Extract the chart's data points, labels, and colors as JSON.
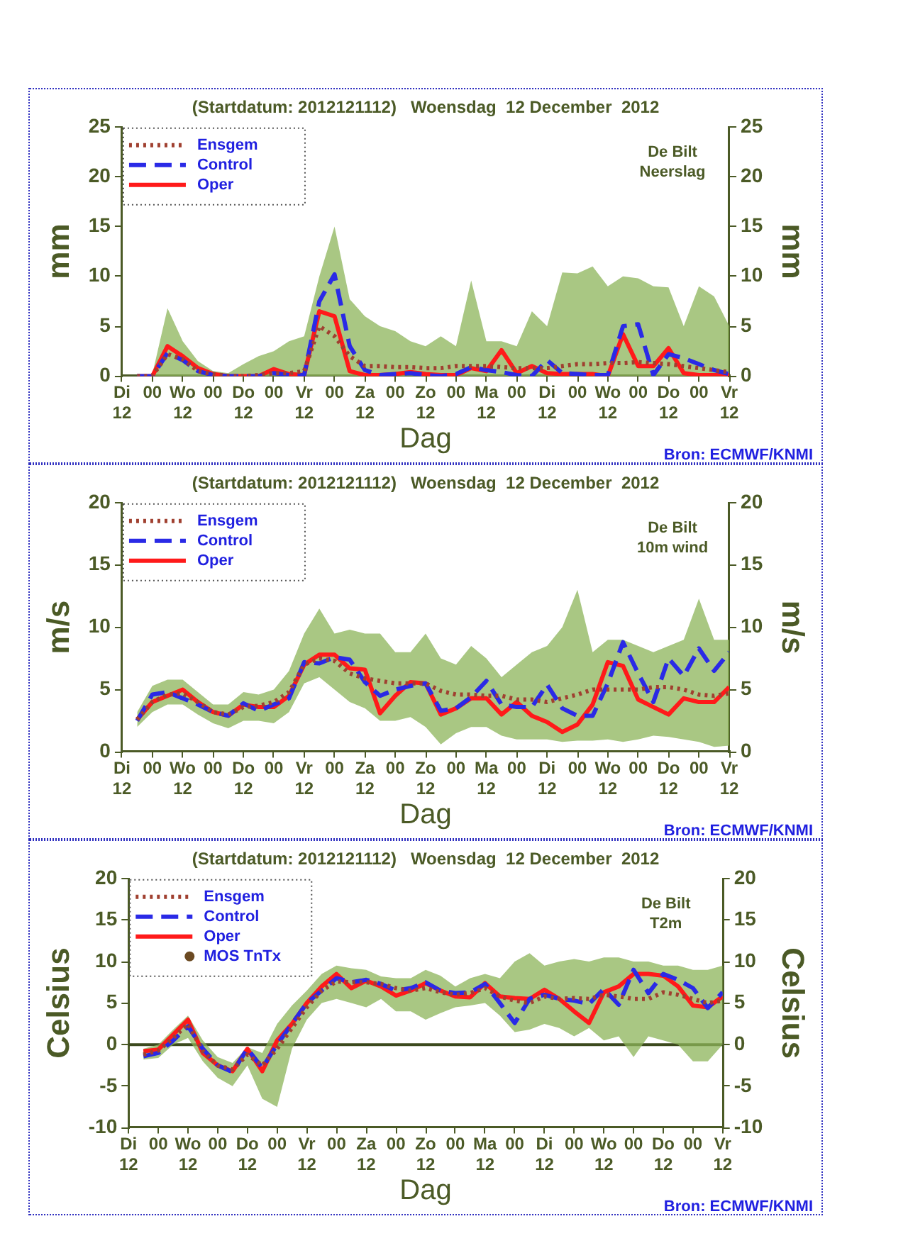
{
  "chart_data": [
    {
      "type": "line",
      "title": "(Startdatum: 2012121112)   Woensdag  12 December  2012",
      "xlabel": "Dag",
      "ylabel": "mm",
      "y2label": "mm",
      "annotations": [
        "De Bilt\nNeerslag",
        "Bron: ECMWF/KNMI"
      ],
      "x": [
        "2012-12-11T18:00",
        "2012-12-12T00:00",
        "2012-12-12T06:00",
        "2012-12-12T12:00",
        "2012-12-12T18:00",
        "2012-12-13T00:00",
        "2012-12-13T06:00",
        "2012-12-13T12:00",
        "2012-12-13T18:00",
        "2012-12-14T00:00",
        "2012-12-14T06:00",
        "2012-12-14T12:00",
        "2012-12-14T18:00",
        "2012-12-15T00:00",
        "2012-12-15T06:00",
        "2012-12-15T12:00",
        "2012-12-15T18:00",
        "2012-12-16T00:00",
        "2012-12-16T06:00",
        "2012-12-16T12:00",
        "2012-12-16T18:00",
        "2012-12-17T00:00",
        "2012-12-17T06:00",
        "2012-12-17T12:00",
        "2012-12-17T18:00",
        "2012-12-18T00:00",
        "2012-12-18T06:00",
        "2012-12-18T12:00",
        "2012-12-18T18:00",
        "2012-12-19T00:00",
        "2012-12-19T06:00",
        "2012-12-19T12:00",
        "2012-12-19T18:00",
        "2012-12-20T00:00",
        "2012-12-20T06:00",
        "2012-12-20T12:00",
        "2012-12-20T18:00",
        "2012-12-21T00:00",
        "2012-12-21T06:00",
        "2012-12-21T12:00"
      ],
      "xlim": [
        "2012-12-11T12:00",
        "2012-12-21T12:00"
      ],
      "xticks": [
        {
          "value": "2012-12-11T12:00",
          "label": "Di\n12"
        },
        {
          "value": "2012-12-12T00:00",
          "label": "00"
        },
        {
          "value": "2012-12-12T12:00",
          "label": "Wo\n12"
        },
        {
          "value": "2012-12-13T00:00",
          "label": "00"
        },
        {
          "value": "2012-12-13T12:00",
          "label": "Do\n12"
        },
        {
          "value": "2012-12-14T00:00",
          "label": "00"
        },
        {
          "value": "2012-12-14T12:00",
          "label": "Vr\n12"
        },
        {
          "value": "2012-12-15T00:00",
          "label": "00"
        },
        {
          "value": "2012-12-15T12:00",
          "label": "Za\n12"
        },
        {
          "value": "2012-12-16T00:00",
          "label": "00"
        },
        {
          "value": "2012-12-16T12:00",
          "label": "Zo\n12"
        },
        {
          "value": "2012-12-17T00:00",
          "label": "00"
        },
        {
          "value": "2012-12-17T12:00",
          "label": "Ma\n12"
        },
        {
          "value": "2012-12-18T00:00",
          "label": "00"
        },
        {
          "value": "2012-12-18T12:00",
          "label": "Di\n12"
        },
        {
          "value": "2012-12-19T00:00",
          "label": "00"
        },
        {
          "value": "2012-12-19T12:00",
          "label": "Wo\n12"
        },
        {
          "value": "2012-12-20T00:00",
          "label": "00"
        },
        {
          "value": "2012-12-20T12:00",
          "label": "Do\n12"
        },
        {
          "value": "2012-12-21T00:00",
          "label": "00"
        },
        {
          "value": "2012-12-21T12:00",
          "label": "Vr\n12"
        }
      ],
      "ylim": [
        0,
        25
      ],
      "yticks": [
        0,
        5,
        10,
        15,
        20,
        25
      ],
      "y2lim": [
        0,
        25
      ],
      "y2ticks": [
        0,
        5,
        10,
        15,
        20,
        25
      ],
      "grid": false,
      "legend": "top left",
      "marker": "none",
      "series": [
        {
          "name": "Ensgem",
          "color": "#a04030",
          "line_style": "dotted",
          "values": [
            0,
            0,
            2.2,
            1.7,
            0.5,
            0.2,
            0,
            0,
            0.1,
            0.3,
            0.3,
            0.5,
            5.0,
            4.0,
            2.0,
            1.0,
            1.0,
            0.9,
            0.9,
            0.8,
            0.8,
            1.0,
            1.0,
            1.0,
            0.9,
            0.8,
            0.8,
            0.8,
            1.0,
            1.2,
            1.2,
            1.3,
            1.3,
            1.4,
            1.3,
            1.2,
            1.0,
            0.8,
            0.6,
            0.4
          ],
          "lower": [
            0,
            0,
            0,
            0,
            0,
            0,
            0,
            0,
            0,
            0,
            0,
            0,
            0,
            0,
            0,
            0,
            0,
            0,
            0,
            0,
            0,
            0,
            0,
            0,
            0,
            0,
            0,
            0,
            0,
            0,
            0,
            0,
            0,
            0,
            0,
            0,
            0,
            0,
            0,
            0
          ],
          "upper": [
            0,
            0.2,
            6.8,
            3.5,
            1.5,
            0.5,
            0.3,
            1.2,
            2.0,
            2.5,
            3.5,
            4.0,
            10.0,
            15.0,
            7.7,
            6.0,
            5.0,
            4.5,
            3.5,
            3.0,
            4.0,
            3.0,
            9.6,
            3.5,
            3.5,
            3.0,
            6.5,
            5.0,
            10.4,
            10.3,
            11.0,
            9.0,
            10.0,
            9.8,
            9.0,
            8.9,
            5.0,
            9.0,
            8.0,
            5.0
          ]
        },
        {
          "name": "Control",
          "color": "#2a2ae6",
          "line_style": "dashed",
          "values": [
            0,
            0,
            2.3,
            1.6,
            0.5,
            0.1,
            0,
            0,
            0,
            0.3,
            0.1,
            0.1,
            7.5,
            10.2,
            3.0,
            0.6,
            0.1,
            0.2,
            0.3,
            0.1,
            0,
            0.2,
            0.9,
            0.6,
            0.4,
            0.1,
            0,
            1.6,
            0.3,
            0.2,
            0.1,
            0.1,
            5.0,
            5.2,
            0.1,
            2.2,
            1.8,
            1.2,
            0.6,
            0.2
          ]
        },
        {
          "name": "Oper",
          "color": "#ff1a1a",
          "line_style": "solid",
          "values": [
            0,
            0,
            3.0,
            2.0,
            0.8,
            0.2,
            0,
            0,
            0,
            0.7,
            0.2,
            0.1,
            6.5,
            6.0,
            0.5,
            0.1,
            0.1,
            0.2,
            0.4,
            0.2,
            0.1,
            0.1,
            0.8,
            0.5,
            2.6,
            0.3,
            1.0,
            0.3,
            0.2,
            0.2,
            0.2,
            0,
            4.2,
            1.0,
            1.0,
            2.8,
            0.3,
            0.1,
            0.1,
            0.1
          ]
        }
      ]
    },
    {
      "type": "line",
      "title": "(Startdatum: 2012121112)   Woensdag  12 December  2012",
      "xlabel": "Dag",
      "ylabel": "m/s",
      "y2label": "m/s",
      "annotations": [
        "De Bilt\n10m wind",
        "Bron: ECMWF/KNMI"
      ],
      "x": [
        "2012-12-11T18:00",
        "2012-12-12T00:00",
        "2012-12-12T06:00",
        "2012-12-12T12:00",
        "2012-12-12T18:00",
        "2012-12-13T00:00",
        "2012-12-13T06:00",
        "2012-12-13T12:00",
        "2012-12-13T18:00",
        "2012-12-14T00:00",
        "2012-12-14T06:00",
        "2012-12-14T12:00",
        "2012-12-14T18:00",
        "2012-12-15T00:00",
        "2012-12-15T06:00",
        "2012-12-15T12:00",
        "2012-12-15T18:00",
        "2012-12-16T00:00",
        "2012-12-16T06:00",
        "2012-12-16T12:00",
        "2012-12-16T18:00",
        "2012-12-17T00:00",
        "2012-12-17T06:00",
        "2012-12-17T12:00",
        "2012-12-17T18:00",
        "2012-12-18T00:00",
        "2012-12-18T06:00",
        "2012-12-18T12:00",
        "2012-12-18T18:00",
        "2012-12-19T00:00",
        "2012-12-19T06:00",
        "2012-12-19T12:00",
        "2012-12-19T18:00",
        "2012-12-20T00:00",
        "2012-12-20T06:00",
        "2012-12-20T12:00",
        "2012-12-20T18:00",
        "2012-12-21T00:00",
        "2012-12-21T06:00",
        "2012-12-21T12:00"
      ],
      "xlim": [
        "2012-12-11T12:00",
        "2012-12-21T12:00"
      ],
      "xticks": [
        {
          "value": "2012-12-11T12:00",
          "label": "Di\n12"
        },
        {
          "value": "2012-12-12T00:00",
          "label": "00"
        },
        {
          "value": "2012-12-12T12:00",
          "label": "Wo\n12"
        },
        {
          "value": "2012-12-13T00:00",
          "label": "00"
        },
        {
          "value": "2012-12-13T12:00",
          "label": "Do\n12"
        },
        {
          "value": "2012-12-14T00:00",
          "label": "00"
        },
        {
          "value": "2012-12-14T12:00",
          "label": "Vr\n12"
        },
        {
          "value": "2012-12-15T00:00",
          "label": "00"
        },
        {
          "value": "2012-12-15T12:00",
          "label": "Za\n12"
        },
        {
          "value": "2012-12-16T00:00",
          "label": "00"
        },
        {
          "value": "2012-12-16T12:00",
          "label": "Zo\n12"
        },
        {
          "value": "2012-12-17T00:00",
          "label": "00"
        },
        {
          "value": "2012-12-17T12:00",
          "label": "Ma\n12"
        },
        {
          "value": "2012-12-18T00:00",
          "label": "00"
        },
        {
          "value": "2012-12-18T12:00",
          "label": "Di\n12"
        },
        {
          "value": "2012-12-19T00:00",
          "label": "00"
        },
        {
          "value": "2012-12-19T12:00",
          "label": "Wo\n12"
        },
        {
          "value": "2012-12-20T00:00",
          "label": "00"
        },
        {
          "value": "2012-12-20T12:00",
          "label": "Do\n12"
        },
        {
          "value": "2012-12-21T00:00",
          "label": "00"
        },
        {
          "value": "2012-12-21T12:00",
          "label": "Vr\n12"
        }
      ],
      "ylim": [
        0,
        20
      ],
      "yticks": [
        0,
        5,
        10,
        15,
        20
      ],
      "y2lim": [
        0,
        20
      ],
      "y2ticks": [
        0,
        5,
        10,
        15,
        20
      ],
      "grid": false,
      "legend": "top left",
      "marker": "none",
      "series": [
        {
          "name": "Ensgem",
          "color": "#a04030",
          "line_style": "dotted",
          "values": [
            2.6,
            4.0,
            4.6,
            4.7,
            4.0,
            3.2,
            3.0,
            3.6,
            3.7,
            4.0,
            4.8,
            7.0,
            7.5,
            7.3,
            6.3,
            5.9,
            5.7,
            5.5,
            5.5,
            5.5,
            4.9,
            4.6,
            4.6,
            4.5,
            4.5,
            4.2,
            4.2,
            4.0,
            4.3,
            4.6,
            5.0,
            5.0,
            5.0,
            5.0,
            5.2,
            5.2,
            5.0,
            4.6,
            4.5,
            4.7
          ],
          "lower": [
            2.0,
            3.2,
            3.8,
            3.8,
            3.0,
            2.3,
            1.9,
            2.5,
            2.5,
            2.3,
            3.2,
            5.5,
            6.0,
            5.0,
            4.0,
            3.5,
            2.5,
            2.5,
            2.8,
            2.0,
            0.6,
            1.5,
            2.0,
            2.0,
            1.3,
            1.0,
            1.0,
            1.0,
            0.8,
            0.9,
            0.9,
            1.0,
            0.8,
            1.0,
            1.3,
            1.2,
            1.0,
            0.8,
            0.4,
            0.5
          ],
          "upper": [
            3.2,
            5.3,
            5.8,
            5.8,
            4.8,
            3.8,
            3.8,
            4.8,
            4.6,
            5.0,
            6.5,
            9.5,
            11.5,
            9.5,
            9.8,
            9.5,
            9.5,
            8.0,
            8.0,
            9.5,
            7.5,
            7.0,
            8.5,
            7.5,
            6.0,
            7.0,
            8.0,
            8.5,
            10.0,
            13.0,
            8.0,
            9.0,
            9.0,
            8.5,
            8.0,
            8.5,
            9.0,
            12.3,
            9.0,
            9.0
          ]
        },
        {
          "name": "Control",
          "color": "#2a2ae6",
          "line_style": "dashed",
          "values": [
            2.5,
            4.6,
            4.8,
            4.3,
            3.8,
            3.2,
            2.9,
            3.9,
            3.3,
            3.8,
            4.3,
            7.2,
            7.1,
            7.6,
            7.4,
            5.6,
            4.5,
            5.0,
            5.3,
            5.5,
            3.3,
            3.5,
            4.4,
            5.7,
            3.8,
            3.6,
            3.6,
            5.4,
            3.5,
            2.9,
            2.9,
            5.5,
            8.8,
            6.3,
            4.0,
            7.5,
            6.1,
            8.3,
            6.5,
            8.0
          ]
        },
        {
          "name": "Oper",
          "color": "#ff1a1a",
          "line_style": "solid",
          "values": [
            2.6,
            4.0,
            4.5,
            5.0,
            4.0,
            3.2,
            2.9,
            3.8,
            3.6,
            3.6,
            4.5,
            7.0,
            7.8,
            7.8,
            6.7,
            6.6,
            3.1,
            4.5,
            5.6,
            5.5,
            3.0,
            3.5,
            4.3,
            4.3,
            3.0,
            4.0,
            2.9,
            2.4,
            1.6,
            2.2,
            3.8,
            7.2,
            6.9,
            4.2,
            3.6,
            3.0,
            4.3,
            4.0,
            4.0,
            5.2
          ]
        }
      ]
    },
    {
      "type": "line",
      "title": "(Startdatum: 2012121112)   Woensdag  12 December  2012",
      "xlabel": "Dag",
      "ylabel": "Celsius",
      "y2label": "Celsius",
      "annotations": [
        "De Bilt\nT2m",
        "Bron: ECMWF/KNMI"
      ],
      "x": [
        "2012-12-11T18:00",
        "2012-12-12T00:00",
        "2012-12-12T06:00",
        "2012-12-12T12:00",
        "2012-12-12T18:00",
        "2012-12-13T00:00",
        "2012-12-13T06:00",
        "2012-12-13T12:00",
        "2012-12-13T18:00",
        "2012-12-14T00:00",
        "2012-12-14T06:00",
        "2012-12-14T12:00",
        "2012-12-14T18:00",
        "2012-12-15T00:00",
        "2012-12-15T06:00",
        "2012-12-15T12:00",
        "2012-12-15T18:00",
        "2012-12-16T00:00",
        "2012-12-16T06:00",
        "2012-12-16T12:00",
        "2012-12-16T18:00",
        "2012-12-17T00:00",
        "2012-12-17T06:00",
        "2012-12-17T12:00",
        "2012-12-17T18:00",
        "2012-12-18T00:00",
        "2012-12-18T06:00",
        "2012-12-18T12:00",
        "2012-12-18T18:00",
        "2012-12-19T00:00",
        "2012-12-19T06:00",
        "2012-12-19T12:00",
        "2012-12-19T18:00",
        "2012-12-20T00:00",
        "2012-12-20T06:00",
        "2012-12-20T12:00",
        "2012-12-20T18:00",
        "2012-12-21T00:00",
        "2012-12-21T06:00",
        "2012-12-21T12:00"
      ],
      "xlim": [
        "2012-12-11T12:00",
        "2012-12-21T12:00"
      ],
      "xticks": [
        {
          "value": "2012-12-11T12:00",
          "label": "Di\n12"
        },
        {
          "value": "2012-12-12T00:00",
          "label": "00"
        },
        {
          "value": "2012-12-12T12:00",
          "label": "Wo\n12"
        },
        {
          "value": "2012-12-13T00:00",
          "label": "00"
        },
        {
          "value": "2012-12-13T12:00",
          "label": "Do\n12"
        },
        {
          "value": "2012-12-14T00:00",
          "label": "00"
        },
        {
          "value": "2012-12-14T12:00",
          "label": "Vr\n12"
        },
        {
          "value": "2012-12-15T00:00",
          "label": "00"
        },
        {
          "value": "2012-12-15T12:00",
          "label": "Za\n12"
        },
        {
          "value": "2012-12-16T00:00",
          "label": "00"
        },
        {
          "value": "2012-12-16T12:00",
          "label": "Zo\n12"
        },
        {
          "value": "2012-12-17T00:00",
          "label": "00"
        },
        {
          "value": "2012-12-17T12:00",
          "label": "Ma\n12"
        },
        {
          "value": "2012-12-18T00:00",
          "label": "00"
        },
        {
          "value": "2012-12-18T12:00",
          "label": "Di\n12"
        },
        {
          "value": "2012-12-19T00:00",
          "label": "00"
        },
        {
          "value": "2012-12-19T12:00",
          "label": "Wo\n12"
        },
        {
          "value": "2012-12-20T00:00",
          "label": "00"
        },
        {
          "value": "2012-12-20T12:00",
          "label": "Do\n12"
        },
        {
          "value": "2012-12-21T00:00",
          "label": "00"
        },
        {
          "value": "2012-12-21T12:00",
          "label": "Vr\n12"
        }
      ],
      "ylim": [
        -10,
        20
      ],
      "yticks": [
        -10,
        -5,
        0,
        5,
        10,
        15,
        20
      ],
      "y2lim": [
        -10,
        20
      ],
      "y2ticks": [
        -10,
        -5,
        0,
        5,
        10,
        15,
        20
      ],
      "grid": false,
      "legend": "top left",
      "marker": "none",
      "ref_lines": [
        {
          "axis": "y",
          "value": 0,
          "color": "#3c4a1e"
        }
      ],
      "series": [
        {
          "name": "Ensgem",
          "color": "#a04030",
          "line_style": "dotted",
          "values": [
            -1.2,
            -0.7,
            0.8,
            2.5,
            -0.8,
            -2.5,
            -3.0,
            -1.2,
            -2.5,
            -0.5,
            2.0,
            4.5,
            6.5,
            7.6,
            7.5,
            7.5,
            7.3,
            6.8,
            6.5,
            6.8,
            6.3,
            6.0,
            6.2,
            6.8,
            5.8,
            5.3,
            5.0,
            5.8,
            5.5,
            5.6,
            5.5,
            6.0,
            5.8,
            5.5,
            5.5,
            6.3,
            6.0,
            5.5,
            5.0,
            5.3
          ],
          "lower": [
            -1.8,
            -1.6,
            0,
            0.8,
            -2.0,
            -4.0,
            -5.0,
            -2.5,
            -6.5,
            -7.5,
            -0.5,
            3.0,
            5.0,
            5.5,
            5.0,
            4.5,
            5.5,
            4.0,
            4.0,
            3.0,
            3.8,
            4.5,
            4.7,
            5.0,
            3.5,
            1.5,
            1.8,
            2.5,
            2.0,
            1.0,
            2.0,
            0.5,
            1.0,
            -1.5,
            1.0,
            0.5,
            0,
            -2.0,
            -2.0,
            0
          ],
          "upper": [
            -0.5,
            0,
            1.8,
            3.5,
            0.5,
            -1.5,
            -2.2,
            -0.3,
            -1.0,
            2.5,
            4.7,
            6.5,
            8.5,
            9.5,
            9.2,
            9.0,
            8.2,
            8.0,
            8.0,
            9.0,
            8.3,
            7.0,
            8.0,
            8.5,
            8.0,
            10.0,
            11.0,
            9.5,
            10.0,
            10.3,
            10.0,
            10.5,
            10.5,
            10.0,
            10.0,
            9.5,
            9.5,
            9.0,
            9.0,
            9.5
          ]
        },
        {
          "name": "Control",
          "color": "#2a2ae6",
          "line_style": "dashed",
          "values": [
            -1.4,
            -1.0,
            0.5,
            2.2,
            -0.5,
            -2.5,
            -3.3,
            -0.5,
            -2.8,
            0,
            2.5,
            5.0,
            6.5,
            8.0,
            7.5,
            7.8,
            7.3,
            6.5,
            6.8,
            7.5,
            6.5,
            6.2,
            6.3,
            7.3,
            5.0,
            2.6,
            5.5,
            6.0,
            5.5,
            5.3,
            4.9,
            6.7,
            4.8,
            9.0,
            6.2,
            8.5,
            7.8,
            6.8,
            4.4,
            6.3
          ]
        },
        {
          "name": "Oper",
          "color": "#ff1a1a",
          "line_style": "solid",
          "values": [
            -0.8,
            -0.6,
            1.2,
            3.0,
            -1.0,
            -2.5,
            -3.2,
            -0.5,
            -3.2,
            0.5,
            2.5,
            5.0,
            7.0,
            8.5,
            6.8,
            7.7,
            7.0,
            5.9,
            6.5,
            7.4,
            6.5,
            5.8,
            5.7,
            7.4,
            5.8,
            5.6,
            5.5,
            6.6,
            5.5,
            4.0,
            2.6,
            6.3,
            7.0,
            8.5,
            8.5,
            8.3,
            7.0,
            4.7,
            4.5,
            5.8
          ]
        },
        {
          "name": "MOS TnTx",
          "type": "scatter",
          "color": "#6b4a22",
          "marker": "circle",
          "values": [
            null,
            null,
            null,
            null,
            null,
            null,
            null,
            null,
            null,
            null,
            null,
            null,
            null,
            null,
            null,
            null,
            null,
            null,
            null,
            null,
            null,
            null,
            null,
            null,
            null,
            null,
            null,
            null,
            null,
            null,
            null,
            null,
            null,
            null,
            null,
            null,
            null,
            null,
            null,
            null
          ]
        }
      ]
    }
  ]
}
